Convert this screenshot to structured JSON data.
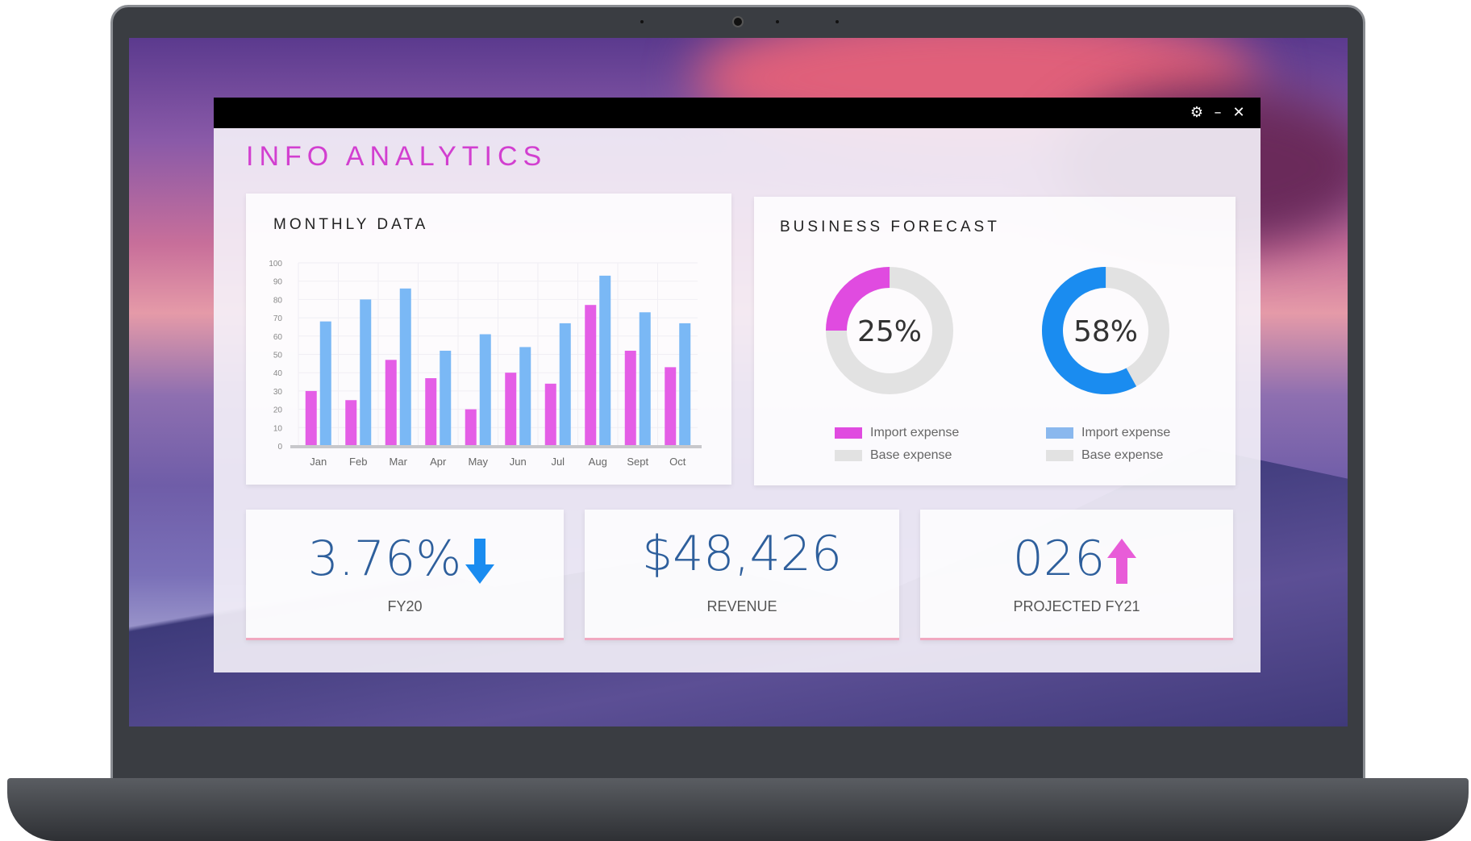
{
  "window": {
    "title": "INFO ANALYTICS",
    "controls": [
      "settings",
      "minimize",
      "close"
    ]
  },
  "monthly": {
    "title": "MONTHLY DATA"
  },
  "forecast": {
    "title": "BUSINESS FORECAST",
    "donuts": [
      {
        "value": 25,
        "label": "25%",
        "color": "#e04be0",
        "legend": [
          "Import expense",
          "Base expense"
        ]
      },
      {
        "value": 58,
        "label": "58%",
        "color": "#1a8cf0",
        "legend": [
          "Import expense",
          "Base expense"
        ]
      }
    ]
  },
  "kpis": [
    {
      "value": "3.76%",
      "label": "FY20",
      "trend": "down"
    },
    {
      "value": "$48,426",
      "label": "REVENUE"
    },
    {
      "value": "026",
      "label": "PROJECTED FY21",
      "trend": "up"
    }
  ],
  "colors": {
    "pink": "#e45ee6",
    "blue": "#7ab8f5",
    "gray": "#e2e2e2",
    "arrow_down": "#1a8cf0",
    "arrow_up": "#e85cd8"
  },
  "chart_data": {
    "type": "bar",
    "title": "MONTHLY DATA",
    "categories": [
      "Jan",
      "Feb",
      "Mar",
      "Apr",
      "May",
      "Jun",
      "Jul",
      "Aug",
      "Sept",
      "Oct"
    ],
    "series": [
      {
        "name": "pink",
        "values": [
          30,
          25,
          47,
          37,
          20,
          40,
          34,
          77,
          52,
          43
        ]
      },
      {
        "name": "blue",
        "values": [
          68,
          80,
          86,
          52,
          61,
          54,
          67,
          93,
          73,
          67
        ]
      }
    ],
    "yticks": [
      0,
      10,
      20,
      30,
      40,
      50,
      60,
      70,
      80,
      90,
      100
    ],
    "ylim": [
      0,
      100
    ],
    "grid": true
  }
}
